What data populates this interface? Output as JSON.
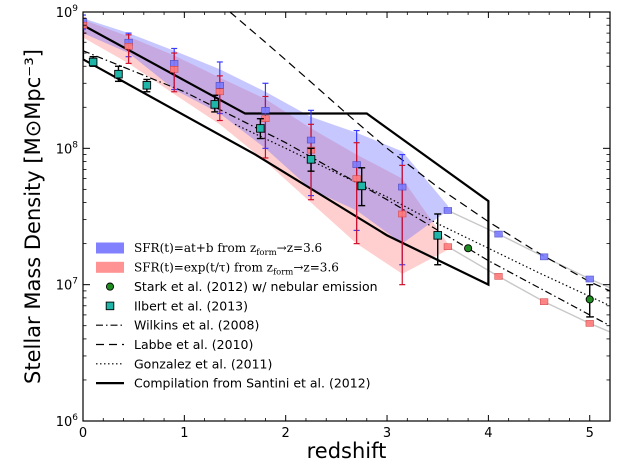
{
  "chart_data": {
    "type": "scatter",
    "xlabel": "redshift",
    "ylabel": "Stellar Mass Density [M⊙Mpc⁻³]",
    "xlim": [
      0,
      5.2
    ],
    "ylim": [
      1000000,
      1000000000
    ],
    "yscale": "log",
    "grid": false,
    "legend_position": "lower-left",
    "x_ticks": [
      0,
      1,
      2,
      3,
      4,
      5
    ],
    "x_tick_labels": [
      "0",
      "1",
      "2",
      "3",
      "4",
      "5"
    ],
    "y_ticks": [
      1000000,
      10000000,
      100000000,
      1000000000
    ],
    "y_tick_labels": [
      {
        "base": "10",
        "exp": "6"
      },
      {
        "base": "10",
        "exp": "7"
      },
      {
        "base": "10",
        "exp": "8"
      },
      {
        "base": "10",
        "exp": "9"
      }
    ],
    "series": [
      {
        "name": "SFR(t)=at+b from z_form→z=3.6",
        "kind": "band",
        "color": "#6b6bff",
        "x": [
          0,
          0.45,
          0.9,
          1.35,
          1.8,
          2.25,
          2.7,
          3.15,
          3.6
        ],
        "low": [
          700000000,
          500000000,
          270000000,
          180000000,
          100000000,
          50000000,
          35000000,
          20000000,
          35000000
        ],
        "high": [
          900000000,
          700000000,
          520000000,
          380000000,
          260000000,
          170000000,
          130000000,
          95000000,
          38000000
        ],
        "points_x": [
          0,
          0.45,
          0.9,
          1.35,
          1.8,
          2.25,
          2.7,
          3.15,
          3.6,
          4.1,
          4.55,
          5.0
        ],
        "points_y": [
          850000000,
          600000000,
          420000000,
          290000000,
          190000000,
          115000000,
          76000000,
          52000000,
          35000000,
          23500000,
          16000000,
          11000000
        ],
        "errors_low": [
          750000000,
          470000000,
          270000000,
          180000000,
          100000000,
          45000000,
          25000000,
          14000000
        ],
        "errors_high": [
          950000000,
          700000000,
          540000000,
          430000000,
          300000000,
          190000000,
          135000000,
          90000000
        ],
        "tail_line_x": [
          3.6,
          4.1,
          4.55,
          5.0,
          5.2
        ],
        "tail_line_y": [
          35000000,
          23500000,
          16000000,
          11000000,
          9500000
        ]
      },
      {
        "name": "SFR(t)=exp(t/τ) from z_form→z=3.6",
        "kind": "band",
        "color": "#ff8080",
        "x": [
          0,
          0.45,
          0.9,
          1.35,
          1.8,
          2.25,
          2.7,
          3.15,
          3.6
        ],
        "low": [
          650000000,
          420000000,
          250000000,
          150000000,
          80000000,
          40000000,
          20000000,
          12000000,
          18000000
        ],
        "high": [
          880000000,
          660000000,
          480000000,
          330000000,
          230000000,
          140000000,
          90000000,
          60000000,
          20000000
        ],
        "points_x": [
          0,
          0.45,
          0.9,
          1.35,
          1.8,
          2.25,
          2.7,
          3.15,
          3.6,
          4.1,
          4.55,
          5.0
        ],
        "points_y": [
          800000000,
          560000000,
          380000000,
          260000000,
          165000000,
          97000000,
          60000000,
          33000000,
          19000000,
          11500000,
          7500000,
          5200000
        ],
        "errors_low": [
          700000000,
          420000000,
          260000000,
          160000000,
          85000000,
          42000000,
          20000000,
          10000000
        ],
        "errors_high": [
          900000000,
          680000000,
          500000000,
          340000000,
          240000000,
          150000000,
          110000000,
          75000000
        ],
        "tail_line_x": [
          3.6,
          4.1,
          4.55,
          5.0,
          5.2
        ],
        "tail_line_y": [
          19000000,
          11500000,
          7500000,
          5200000,
          4500000
        ]
      },
      {
        "name": "Stark et al. (2012) w/ nebular emission",
        "kind": "points",
        "color": "#1e8c1e",
        "marker": "circle",
        "x": [
          3.8,
          5.0
        ],
        "y": [
          18500000,
          7800000
        ],
        "err_low": [
          null,
          5800000
        ],
        "err_high": [
          null,
          10000000
        ]
      },
      {
        "name": "Ilbert et al. (2013)",
        "kind": "points",
        "color": "#1fb5a8",
        "marker": "square",
        "x": [
          0.1,
          0.35,
          0.63,
          1.3,
          1.75,
          2.25,
          2.75,
          3.5
        ],
        "y": [
          430000000,
          350000000,
          290000000,
          210000000,
          140000000,
          83000000,
          53000000,
          23000000
        ],
        "err_low": [
          400000000,
          310000000,
          260000000,
          185000000,
          118000000,
          68000000,
          38000000,
          14000000
        ],
        "err_high": [
          470000000,
          400000000,
          320000000,
          245000000,
          165000000,
          100000000,
          72000000,
          33000000
        ]
      },
      {
        "name": "Wilkins et al. (2008)",
        "kind": "line",
        "color": "#000000",
        "dash": "7,3,1.5,3",
        "x": [
          0,
          1,
          2,
          3,
          4,
          5,
          5.2
        ],
        "y": [
          520000000,
          260000000,
          110000000,
          42000000,
          15000000,
          6000000,
          5000000
        ]
      },
      {
        "name": "Labbe et al. (2010)",
        "kind": "line",
        "color": "#000000",
        "dash": "8,5",
        "x": [
          1.45,
          1.8,
          2.2,
          2.6,
          3.0,
          3.5,
          4.0,
          4.5,
          5.0,
          5.2
        ],
        "y": [
          1000000000,
          600000000,
          330000000,
          180000000,
          100000000,
          52000000,
          29000000,
          17000000,
          10500000,
          9000000
        ]
      },
      {
        "name": "Gonzalez et al. (2011)",
        "kind": "line",
        "color": "#000000",
        "dash": "1.5,2.5",
        "x": [
          1.5,
          2.0,
          2.5,
          3.0,
          3.5,
          4.0,
          4.5,
          5.0,
          5.2
        ],
        "y": [
          150000000,
          100000000,
          66000000,
          44000000,
          28000000,
          18500000,
          12200000,
          8200000,
          7000000
        ]
      },
      {
        "name": "Compilation from Santini et al. (2012)",
        "kind": "polygon",
        "color": "#000000",
        "x": [
          0,
          1.6,
          2.8,
          4.0,
          4.0,
          3.0,
          1.7,
          0,
          0
        ],
        "y": [
          800000000,
          180000000,
          180000000,
          41000000,
          10000000,
          23000000,
          90000000,
          450000000,
          800000000
        ]
      }
    ],
    "legend": [
      {
        "kind": "patch",
        "color": "#6b6bff",
        "label_math": true,
        "label": "SFR(t)=at+b from z",
        "sub": "form",
        "tail": "→z=3.6"
      },
      {
        "kind": "patch",
        "color": "#ff8080",
        "label_math": true,
        "label": "SFR(t)=exp(t/τ) from z",
        "sub": "form",
        "tail": "→z=3.6"
      },
      {
        "kind": "circle",
        "color": "#1e8c1e",
        "label": "Stark et al. (2012) w/ nebular emission"
      },
      {
        "kind": "square",
        "color": "#1fb5a8",
        "label": "Ilbert et al. (2013)"
      },
      {
        "kind": "line",
        "dash": "7,3,1.5,3",
        "label": "Wilkins et al. (2008)"
      },
      {
        "kind": "line",
        "dash": "8,5",
        "label": "Labbe et al. (2010)"
      },
      {
        "kind": "line",
        "dash": "1.5,2.5",
        "label": "Gonzalez et al. (2011)"
      },
      {
        "kind": "line",
        "dash": "",
        "bold": true,
        "label": "Compilation from Santini et al. (2012)"
      }
    ]
  }
}
